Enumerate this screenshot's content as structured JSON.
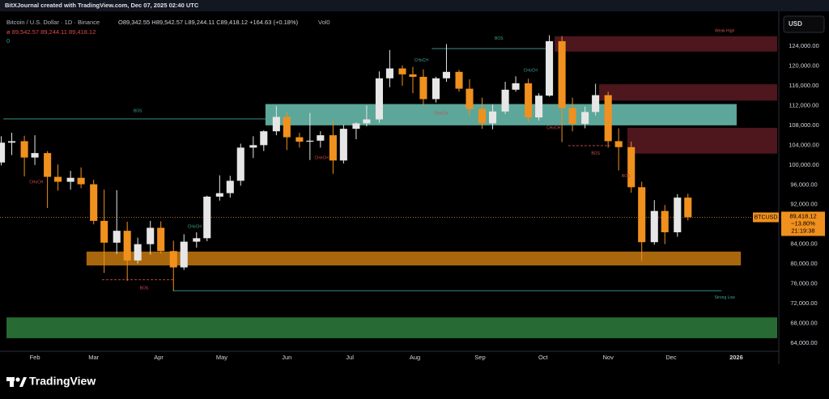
{
  "header": {
    "attribution": "BitXJournal created with TradingView.com, Dec 07, 2025 02:40 UTC",
    "symbol": "Bitcoin / U.S. Dollar · 1D · Binance",
    "ohlc": "O89,342.55 H89,542.57 L89,244.11 C89,418.12 +164.63 (+0.18%)",
    "volume": "Vol0",
    "indicator": "ø  89,542.57  89,244.11  89,418.12",
    "indicator2": "0"
  },
  "footer": {
    "brand": "TradingView"
  },
  "chart_data": {
    "type": "candlestick",
    "currency": "USD",
    "ticker": "BTCUSD",
    "up_color": "#e6e6e6",
    "down_color": "#f0901e",
    "x": [
      15,
      20,
      26,
      31,
      37,
      42,
      48,
      53,
      59,
      64,
      70,
      75,
      80,
      86,
      91,
      97,
      102,
      108,
      113,
      119,
      124,
      129,
      135,
      140,
      146,
      151,
      157,
      162,
      167,
      173,
      178,
      184,
      189,
      195,
      200,
      206,
      211,
      216,
      222,
      227,
      233,
      238,
      244,
      249,
      255,
      260,
      266,
      271,
      276,
      282,
      287,
      293,
      298,
      304,
      309,
      315,
      320,
      326,
      331,
      337,
      342
    ],
    "open": [
      100500,
      104500,
      104800,
      101500,
      102400,
      97600,
      96600,
      97400,
      96100,
      88700,
      84300,
      86700,
      80700,
      84000,
      87300,
      82600,
      79300,
      84500,
      85200,
      93600,
      94300,
      96800,
      103500,
      104000,
      106800,
      109700,
      105600,
      104700,
      104900,
      106000,
      100900,
      107300,
      108400,
      109200,
      117500,
      119500,
      118300,
      117800,
      113300,
      117500,
      118800,
      115400,
      111300,
      108400,
      110800,
      115200,
      116500,
      109600,
      114000,
      125000,
      111500,
      108300,
      110700,
      114100,
      104800,
      103600,
      95500,
      84400,
      90700,
      86400,
      93400
    ],
    "high": [
      105800,
      106500,
      105900,
      106000,
      102800,
      100100,
      98800,
      99500,
      97000,
      95000,
      94900,
      88500,
      85300,
      88700,
      88600,
      84700,
      86000,
      86400,
      93800,
      97900,
      97800,
      104300,
      105800,
      107000,
      111900,
      110700,
      106500,
      110500,
      106800,
      108900,
      108100,
      108600,
      112000,
      118900,
      123200,
      120100,
      119800,
      119300,
      117800,
      124400,
      119200,
      117300,
      113600,
      112200,
      116800,
      117900,
      117400,
      114500,
      126200,
      126000,
      113600,
      111800,
      116400,
      114800,
      107400,
      104700,
      96600,
      92900,
      91900,
      94100,
      94200
    ],
    "low": [
      99900,
      102000,
      97700,
      100000,
      91300,
      94800,
      95000,
      95300,
      88000,
      78200,
      82000,
      76600,
      80100,
      81900,
      82100,
      74500,
      78800,
      83300,
      84600,
      92800,
      93400,
      95800,
      101400,
      102800,
      106000,
      103000,
      103500,
      101000,
      103500,
      98200,
      100300,
      105200,
      107800,
      108500,
      115700,
      116000,
      114500,
      112000,
      112600,
      116800,
      114800,
      110000,
      107300,
      107200,
      110300,
      114800,
      108700,
      109000,
      113800,
      104600,
      106800,
      107400,
      110000,
      103500,
      98900,
      94400,
      80600,
      83900,
      84000,
      85500,
      88800
    ],
    "close": [
      104500,
      104800,
      101500,
      102400,
      97600,
      96600,
      97400,
      96100,
      88700,
      84300,
      86700,
      80700,
      84000,
      87300,
      82600,
      79300,
      84500,
      85200,
      93600,
      94300,
      96800,
      103500,
      104000,
      106800,
      109700,
      105600,
      104700,
      104900,
      106000,
      100900,
      107300,
      108400,
      109200,
      117500,
      119500,
      118300,
      117800,
      113300,
      117500,
      118800,
      115400,
      111300,
      108400,
      110800,
      115200,
      116500,
      109600,
      114000,
      125000,
      111500,
      108300,
      110700,
      114100,
      104800,
      103600,
      95500,
      84400,
      90700,
      86400,
      93400,
      89418.12
    ],
    "xlim": [
      14.4,
      384.5
    ],
    "ylim": [
      62365,
      130050
    ],
    "xticks": [
      {
        "value": 31,
        "label": "Feb"
      },
      {
        "value": 59,
        "label": "Mar"
      },
      {
        "value": 90,
        "label": "Apr"
      },
      {
        "value": 120,
        "label": "May"
      },
      {
        "value": 151,
        "label": "Jun"
      },
      {
        "value": 181,
        "label": "Jul"
      },
      {
        "value": 212,
        "label": "Aug"
      },
      {
        "value": 243,
        "label": "Sep"
      },
      {
        "value": 273,
        "label": "Oct"
      },
      {
        "value": 304,
        "label": "Nov"
      },
      {
        "value": 334,
        "label": "Dec"
      },
      {
        "value": 365,
        "label": "2026"
      }
    ],
    "yticks": [
      {
        "value": 64000,
        "label": "64,000.00"
      },
      {
        "value": 68000,
        "label": "68,000.00"
      },
      {
        "value": 72000,
        "label": "72,000.00"
      },
      {
        "value": 76000,
        "label": "76,000.00"
      },
      {
        "value": 80000,
        "label": "80,000.00"
      },
      {
        "value": 84000,
        "label": "84,000.00"
      },
      {
        "value": 88000,
        "label": "88,000.00"
      },
      {
        "value": 92000,
        "label": "92,000.00"
      },
      {
        "value": 96000,
        "label": "96,000.00"
      },
      {
        "value": 100000,
        "label": "100,000.00"
      },
      {
        "value": 104000,
        "label": "104,000.00"
      },
      {
        "value": 108000,
        "label": "108,000.00"
      },
      {
        "value": 112000,
        "label": "112,000.00"
      },
      {
        "value": 116000,
        "label": "116,000.00"
      },
      {
        "value": 120000,
        "label": "120,000.00"
      },
      {
        "value": 124000,
        "label": "124,000.00"
      }
    ],
    "last_price": {
      "value": 89418.12,
      "label": "89,418.12"
    },
    "change_label": "−13.80%",
    "countdown": "21:19:38",
    "last_color": "#f0901e",
    "zones": [
      {
        "xlim": [
          140.8,
          365.2
        ],
        "ylim": [
          108000,
          112300
        ],
        "color": "#6cc4b4"
      },
      {
        "xlim": [
          55.6,
          367.2
        ],
        "ylim": [
          79700,
          82500
        ],
        "color": "#c7790f"
      },
      {
        "xlim": [
          278.5,
          384.5
        ],
        "ylim": [
          122900,
          126000
        ],
        "color": "#5c1a22"
      },
      {
        "xlim": [
          299.7,
          384.5
        ],
        "ylim": [
          113000,
          116300
        ],
        "color": "#5c1a22"
      },
      {
        "xlim": [
          313.2,
          384.5
        ],
        "ylim": [
          102300,
          107500
        ],
        "color": "#5c1a22"
      },
      {
        "xlim": [
          17.5,
          384.5
        ],
        "ylim": [
          65000,
          69200
        ],
        "color": "#2f7d3c"
      }
    ],
    "lines": [
      {
        "x": [
          16,
          140.8
        ],
        "y": 109300,
        "color": "#3fa394",
        "dashed": false
      },
      {
        "x": [
          220,
          276
        ],
        "y": 123500,
        "color": "#3fa394",
        "dashed": false
      },
      {
        "x": [
          97,
          358
        ],
        "y": 74600,
        "color": "#3fa394",
        "dashed": false
      },
      {
        "x": [
          63,
          97
        ],
        "y": 76800,
        "color": "#d24b4b",
        "dashed": true
      },
      {
        "x": [
          285,
          305
        ],
        "y": 103900,
        "color": "#d24b4b",
        "dashed": true
      }
    ],
    "annotations": [
      {
        "text": "BOS",
        "x": 80,
        "y": 110900,
        "color": "#3fa394"
      },
      {
        "text": "BOS",
        "x": 252,
        "y": 125500,
        "color": "#3fa394"
      },
      {
        "text": "Weak High",
        "x": 359.5,
        "y": 127100,
        "color": "#d24b4b"
      },
      {
        "text": "Strong Low",
        "x": 359.5,
        "y": 73200,
        "color": "#3fa394"
      },
      {
        "text": "BOS",
        "x": 83,
        "y": 75100,
        "color": "#d24b4b"
      },
      {
        "text": "BOS",
        "x": 298,
        "y": 102300,
        "color": "#d24b4b"
      },
      {
        "text": "BOS",
        "x": 312.5,
        "y": 97700,
        "color": "#d24b4b"
      },
      {
        "text": "CHoCH",
        "x": 107,
        "y": 87500,
        "color": "#3fa394"
      },
      {
        "text": "CHoCH",
        "x": 215,
        "y": 121100,
        "color": "#3fa394"
      },
      {
        "text": "CHoCH",
        "x": 267,
        "y": 119100,
        "color": "#3fa394"
      },
      {
        "text": "CHoCH",
        "x": 31.7,
        "y": 96500,
        "color": "#d24b4b"
      },
      {
        "text": "CHoCH",
        "x": 167.5,
        "y": 101400,
        "color": "#d24b4b"
      },
      {
        "text": "CHoCH",
        "x": 224.5,
        "y": 110400,
        "color": "#d24b4b"
      },
      {
        "text": "CHoCH",
        "x": 278,
        "y": 107500,
        "color": "#d24b4b"
      }
    ]
  }
}
